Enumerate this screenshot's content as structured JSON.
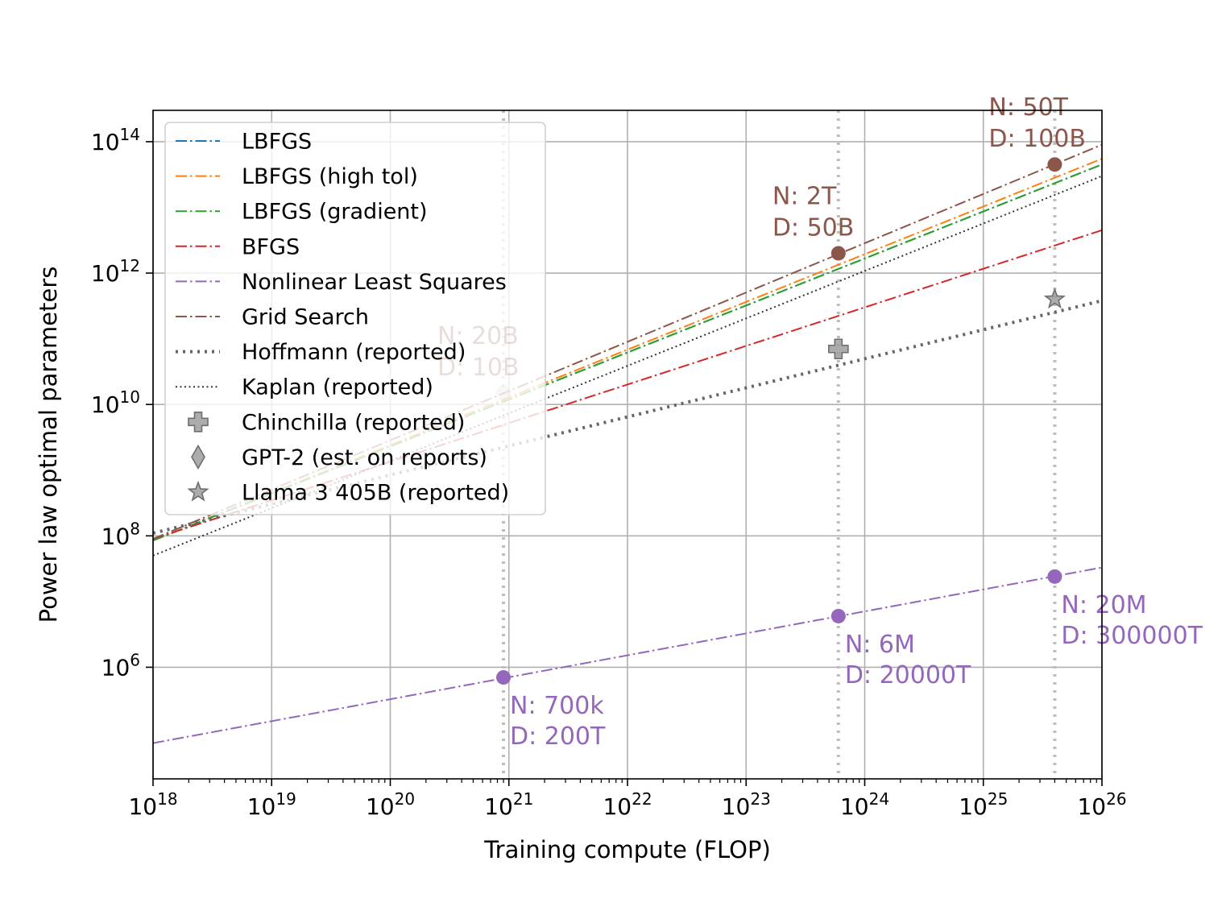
{
  "chart_data": {
    "type": "line",
    "xlabel": "Training compute (FLOP)",
    "ylabel": "Power law optimal parameters",
    "xscale": "log",
    "yscale": "log",
    "xlim": [
      1e+18,
      1e+26
    ],
    "ylim": [
      20000.0,
      300000000000000.0
    ],
    "grid": true,
    "legend_position": "top-left",
    "x_ticks": [
      {
        "exp": 18,
        "base": "10",
        "sup": "18"
      },
      {
        "exp": 19,
        "base": "10",
        "sup": "19"
      },
      {
        "exp": 20,
        "base": "10",
        "sup": "20"
      },
      {
        "exp": 21,
        "base": "10",
        "sup": "21"
      },
      {
        "exp": 22,
        "base": "10",
        "sup": "22"
      },
      {
        "exp": 23,
        "base": "10",
        "sup": "23"
      },
      {
        "exp": 24,
        "base": "10",
        "sup": "24"
      },
      {
        "exp": 25,
        "base": "10",
        "sup": "25"
      },
      {
        "exp": 26,
        "base": "10",
        "sup": "26"
      }
    ],
    "y_ticks": [
      {
        "exp": 6,
        "base": "10",
        "sup": "6"
      },
      {
        "exp": 8,
        "base": "10",
        "sup": "8"
      },
      {
        "exp": 10,
        "base": "10",
        "sup": "10"
      },
      {
        "exp": 12,
        "base": "10",
        "sup": "12"
      },
      {
        "exp": 14,
        "base": "10",
        "sup": "14"
      }
    ],
    "vertical_reference_x": [
      9e+20,
      6e+23,
      4e+25
    ],
    "series": [
      {
        "name": "LBFGS",
        "color": "#1f77b4",
        "dash": "dashdot",
        "x": [
          1e+18,
          1e+26
        ],
        "y": [
          85000000.0,
          45000000000000.0
        ]
      },
      {
        "name": "LBFGS (high tol)",
        "color": "#ff7f0e",
        "dash": "dashdot",
        "x": [
          1e+18,
          1e+26
        ],
        "y": [
          85000000.0,
          55000000000000.0
        ]
      },
      {
        "name": "LBFGS (gradient)",
        "color": "#2ca02c",
        "dash": "dashdot",
        "x": [
          1e+18,
          1e+26
        ],
        "y": [
          85000000.0,
          45000000000000.0
        ]
      },
      {
        "name": "BFGS",
        "color": "#d62728",
        "dash": "dashdot",
        "x": [
          1e+18,
          1e+26
        ],
        "y": [
          90000000.0,
          4500000000000.0
        ]
      },
      {
        "name": "Nonlinear Least Squares",
        "color": "#9467bd",
        "dash": "dashdot",
        "x": [
          1e+18,
          1e+26
        ],
        "y": [
          70000.0,
          33000000.0
        ]
      },
      {
        "name": "Grid Search",
        "color": "#8c564b",
        "dash": "dashdot",
        "x": [
          1e+18,
          1e+26
        ],
        "y": [
          90000000.0,
          90000000000000.0
        ]
      },
      {
        "name": "Hoffmann (reported)",
        "color": "#666666",
        "dash": "dotted-thick",
        "x": [
          1e+18,
          1e+26
        ],
        "y": [
          110000000.0,
          380000000000.0
        ]
      },
      {
        "name": "Kaplan (reported)",
        "color": "#333333",
        "dash": "dotted",
        "x": [
          1e+18,
          1e+26
        ],
        "y": [
          50000000.0,
          30000000000000.0
        ]
      }
    ],
    "marker_series": [
      {
        "name": "Chinchilla (reported)",
        "marker": "plus",
        "color": "#999999",
        "points": [
          [
            6e+23,
            70000000000.0
          ]
        ]
      },
      {
        "name": "GPT-2 (est. on reports)",
        "marker": "diamond",
        "color": "#999999",
        "points": []
      },
      {
        "name": "Llama 3 405B (reported)",
        "marker": "star",
        "color": "#999999",
        "points": [
          [
            4e+25,
            400000000000.0
          ]
        ]
      }
    ],
    "highlight_points": [
      {
        "series": "Grid Search",
        "color": "#8c564b",
        "x": 9e+20,
        "y": 15000000000.0,
        "lines": [
          "N: 20B",
          "D: 10B"
        ]
      },
      {
        "series": "Grid Search",
        "color": "#8c564b",
        "x": 6e+23,
        "y": 2000000000000.0,
        "lines": [
          "N: 2T",
          "D: 50B"
        ]
      },
      {
        "series": "Grid Search",
        "color": "#8c564b",
        "x": 4e+25,
        "y": 45000000000000.0,
        "lines": [
          "N: 50T",
          "D: 100B"
        ]
      },
      {
        "series": "Nonlinear Least Squares",
        "color": "#9467bd",
        "x": 9e+20,
        "y": 700000.0,
        "lines": [
          "N: 700k",
          "D: 200T"
        ]
      },
      {
        "series": "Nonlinear Least Squares",
        "color": "#9467bd",
        "x": 6e+23,
        "y": 6000000.0,
        "lines": [
          "N: 6M",
          "D: 20000T"
        ]
      },
      {
        "series": "Nonlinear Least Squares",
        "color": "#9467bd",
        "x": 4e+25,
        "y": 24000000.0,
        "lines": [
          "N: 20M",
          "D: 300000T"
        ]
      }
    ]
  }
}
